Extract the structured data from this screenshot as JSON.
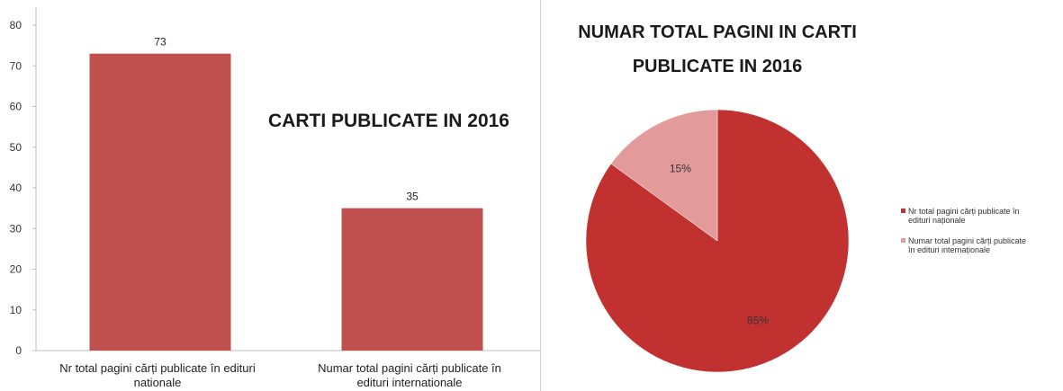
{
  "chart_data": [
    {
      "type": "bar",
      "title": "CARTI PUBLICATE IN 2016",
      "categories": [
        [
          "Nr total pagini cărți publicate în edituri",
          "nationale"
        ],
        [
          "Numar total pagini cărți publicate în",
          "edituri internationale"
        ]
      ],
      "values": [
        73,
        35
      ],
      "data_labels": [
        "73",
        "35"
      ],
      "ylim": [
        0,
        80
      ],
      "yticks": [
        0,
        10,
        20,
        30,
        40,
        50,
        60,
        70,
        80
      ],
      "grid": false,
      "colors": {
        "bar": "#c0504d"
      }
    },
    {
      "type": "pie",
      "title": [
        "NUMAR TOTAL PAGINI IN CARTI",
        "PUBLICATE IN 2016"
      ],
      "slices": [
        {
          "label": "Nr total pagini cărți publicate în edituri naționale",
          "value": 85,
          "text": "85%",
          "color": "#c0312f"
        },
        {
          "label": "Numar total pagini cărți publicate în edituri internaționale",
          "value": 15,
          "text": "15%",
          "color": "#e29a9a"
        }
      ],
      "legend": {
        "placement": "right",
        "entries": [
          [
            "Nr total pagini cărți publicate în",
            "edituri naționale"
          ],
          [
            "Numar total pagini cărți publicate",
            "în edituri internaționale"
          ]
        ]
      }
    }
  ]
}
